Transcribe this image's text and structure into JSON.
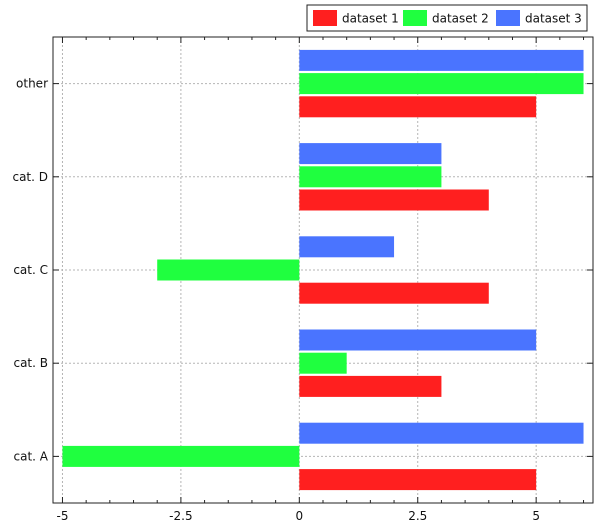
{
  "chart_data": {
    "type": "bar",
    "orientation": "horizontal",
    "categories": [
      "cat. A",
      "cat. B",
      "cat. C",
      "cat. D",
      "other"
    ],
    "series": [
      {
        "name": "dataset 1",
        "color": "#ff1f1f",
        "values": [
          5,
          3,
          4,
          4,
          5
        ]
      },
      {
        "name": "dataset 2",
        "color": "#1fff3f",
        "values": [
          -5,
          1,
          -3,
          3,
          6
        ]
      },
      {
        "name": "dataset 3",
        "color": "#4a74ff",
        "values": [
          6,
          5,
          2,
          3,
          6
        ]
      }
    ],
    "xlim": [
      -5.2,
      6.2
    ],
    "xticks": [
      -5,
      -2.5,
      0,
      2.5,
      5
    ],
    "xtick_labels": [
      "-5",
      "-2.5",
      "0",
      "2.5",
      "5"
    ],
    "grid": true,
    "legend_position": "top-right",
    "title": "",
    "xlabel": "",
    "ylabel": ""
  }
}
